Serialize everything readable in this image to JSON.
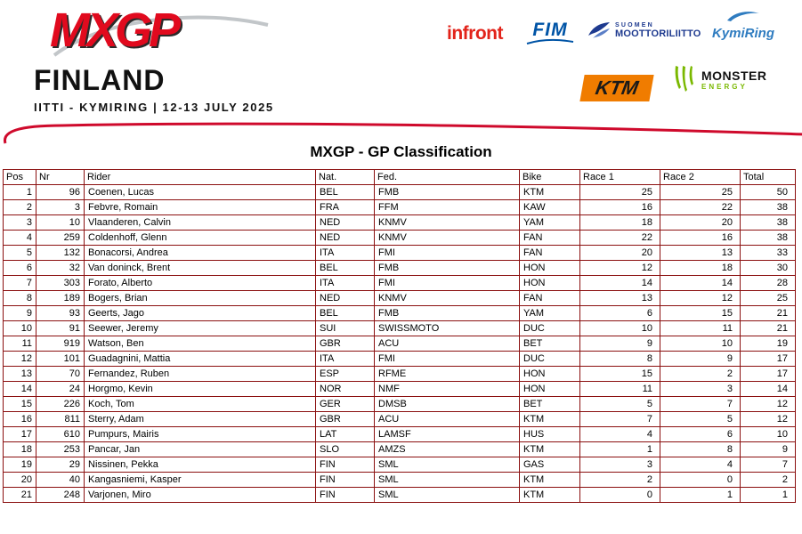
{
  "header": {
    "series_logo": "MXGP",
    "event_name": "FINLAND",
    "event_details": "IITTI - KYMIRING | 12-13 JULY 2025",
    "sponsors": {
      "infront": "infront",
      "fim": "FIM",
      "sml_line1": "SUOMEN",
      "sml_line2": "MOOTTORILIITTO",
      "kymiring": "KymiRing",
      "ktm": "KTM",
      "monster_line1": "MONSTER",
      "monster_line2": "ENERGY"
    }
  },
  "title": "MXGP - GP Classification",
  "table": {
    "columns": [
      "Pos",
      "Nr",
      "Rider",
      "Nat.",
      "Fed.",
      "Bike",
      "Race 1",
      "Race 2",
      "Total"
    ],
    "column_keys": [
      "pos",
      "nr",
      "rider",
      "nat",
      "fed",
      "bike",
      "race1",
      "race2",
      "total"
    ],
    "rows": [
      {
        "pos": "1",
        "nr": "96",
        "rider": "Coenen, Lucas",
        "nat": "BEL",
        "fed": "FMB",
        "bike": "KTM",
        "race1": "25",
        "race2": "25",
        "total": "50"
      },
      {
        "pos": "2",
        "nr": "3",
        "rider": "Febvre, Romain",
        "nat": "FRA",
        "fed": "FFM",
        "bike": "KAW",
        "race1": "16",
        "race2": "22",
        "total": "38"
      },
      {
        "pos": "3",
        "nr": "10",
        "rider": "Vlaanderen, Calvin",
        "nat": "NED",
        "fed": "KNMV",
        "bike": "YAM",
        "race1": "18",
        "race2": "20",
        "total": "38"
      },
      {
        "pos": "4",
        "nr": "259",
        "rider": "Coldenhoff, Glenn",
        "nat": "NED",
        "fed": "KNMV",
        "bike": "FAN",
        "race1": "22",
        "race2": "16",
        "total": "38"
      },
      {
        "pos": "5",
        "nr": "132",
        "rider": "Bonacorsi, Andrea",
        "nat": "ITA",
        "fed": "FMI",
        "bike": "FAN",
        "race1": "20",
        "race2": "13",
        "total": "33"
      },
      {
        "pos": "6",
        "nr": "32",
        "rider": "Van doninck, Brent",
        "nat": "BEL",
        "fed": "FMB",
        "bike": "HON",
        "race1": "12",
        "race2": "18",
        "total": "30"
      },
      {
        "pos": "7",
        "nr": "303",
        "rider": "Forato, Alberto",
        "nat": "ITA",
        "fed": "FMI",
        "bike": "HON",
        "race1": "14",
        "race2": "14",
        "total": "28"
      },
      {
        "pos": "8",
        "nr": "189",
        "rider": "Bogers, Brian",
        "nat": "NED",
        "fed": "KNMV",
        "bike": "FAN",
        "race1": "13",
        "race2": "12",
        "total": "25"
      },
      {
        "pos": "9",
        "nr": "93",
        "rider": "Geerts, Jago",
        "nat": "BEL",
        "fed": "FMB",
        "bike": "YAM",
        "race1": "6",
        "race2": "15",
        "total": "21"
      },
      {
        "pos": "10",
        "nr": "91",
        "rider": "Seewer, Jeremy",
        "nat": "SUI",
        "fed": "SWISSMOTO",
        "bike": "DUC",
        "race1": "10",
        "race2": "11",
        "total": "21"
      },
      {
        "pos": "11",
        "nr": "919",
        "rider": "Watson, Ben",
        "nat": "GBR",
        "fed": "ACU",
        "bike": "BET",
        "race1": "9",
        "race2": "10",
        "total": "19"
      },
      {
        "pos": "12",
        "nr": "101",
        "rider": "Guadagnini, Mattia",
        "nat": "ITA",
        "fed": "FMI",
        "bike": "DUC",
        "race1": "8",
        "race2": "9",
        "total": "17"
      },
      {
        "pos": "13",
        "nr": "70",
        "rider": "Fernandez, Ruben",
        "nat": "ESP",
        "fed": "RFME",
        "bike": "HON",
        "race1": "15",
        "race2": "2",
        "total": "17"
      },
      {
        "pos": "14",
        "nr": "24",
        "rider": "Horgmo, Kevin",
        "nat": "NOR",
        "fed": "NMF",
        "bike": "HON",
        "race1": "11",
        "race2": "3",
        "total": "14"
      },
      {
        "pos": "15",
        "nr": "226",
        "rider": "Koch, Tom",
        "nat": "GER",
        "fed": "DMSB",
        "bike": "BET",
        "race1": "5",
        "race2": "7",
        "total": "12"
      },
      {
        "pos": "16",
        "nr": "811",
        "rider": "Sterry, Adam",
        "nat": "GBR",
        "fed": "ACU",
        "bike": "KTM",
        "race1": "7",
        "race2": "5",
        "total": "12"
      },
      {
        "pos": "17",
        "nr": "610",
        "rider": "Pumpurs, Mairis",
        "nat": "LAT",
        "fed": "LAMSF",
        "bike": "HUS",
        "race1": "4",
        "race2": "6",
        "total": "10"
      },
      {
        "pos": "18",
        "nr": "253",
        "rider": "Pancar, Jan",
        "nat": "SLO",
        "fed": "AMZS",
        "bike": "KTM",
        "race1": "1",
        "race2": "8",
        "total": "9"
      },
      {
        "pos": "19",
        "nr": "29",
        "rider": "Nissinen, Pekka",
        "nat": "FIN",
        "fed": "SML",
        "bike": "GAS",
        "race1": "3",
        "race2": "4",
        "total": "7"
      },
      {
        "pos": "20",
        "nr": "40",
        "rider": "Kangasniemi, Kasper",
        "nat": "FIN",
        "fed": "SML",
        "bike": "KTM",
        "race1": "2",
        "race2": "0",
        "total": "2"
      },
      {
        "pos": "21",
        "nr": "248",
        "rider": "Varjonen, Miro",
        "nat": "FIN",
        "fed": "SML",
        "bike": "KTM",
        "race1": "0",
        "race2": "1",
        "total": "1"
      }
    ]
  },
  "colors": {
    "accent_red": "#cf0a2c",
    "logo_red": "#e10a1e",
    "table_border": "#8b1010",
    "fim_blue": "#0054a6",
    "sml_blue": "#1e3a8f",
    "kymiring_blue": "#2f7cc0",
    "ktm_orange": "#f07c00",
    "monster_green": "#7ab800",
    "infront_red": "#e2231a"
  }
}
